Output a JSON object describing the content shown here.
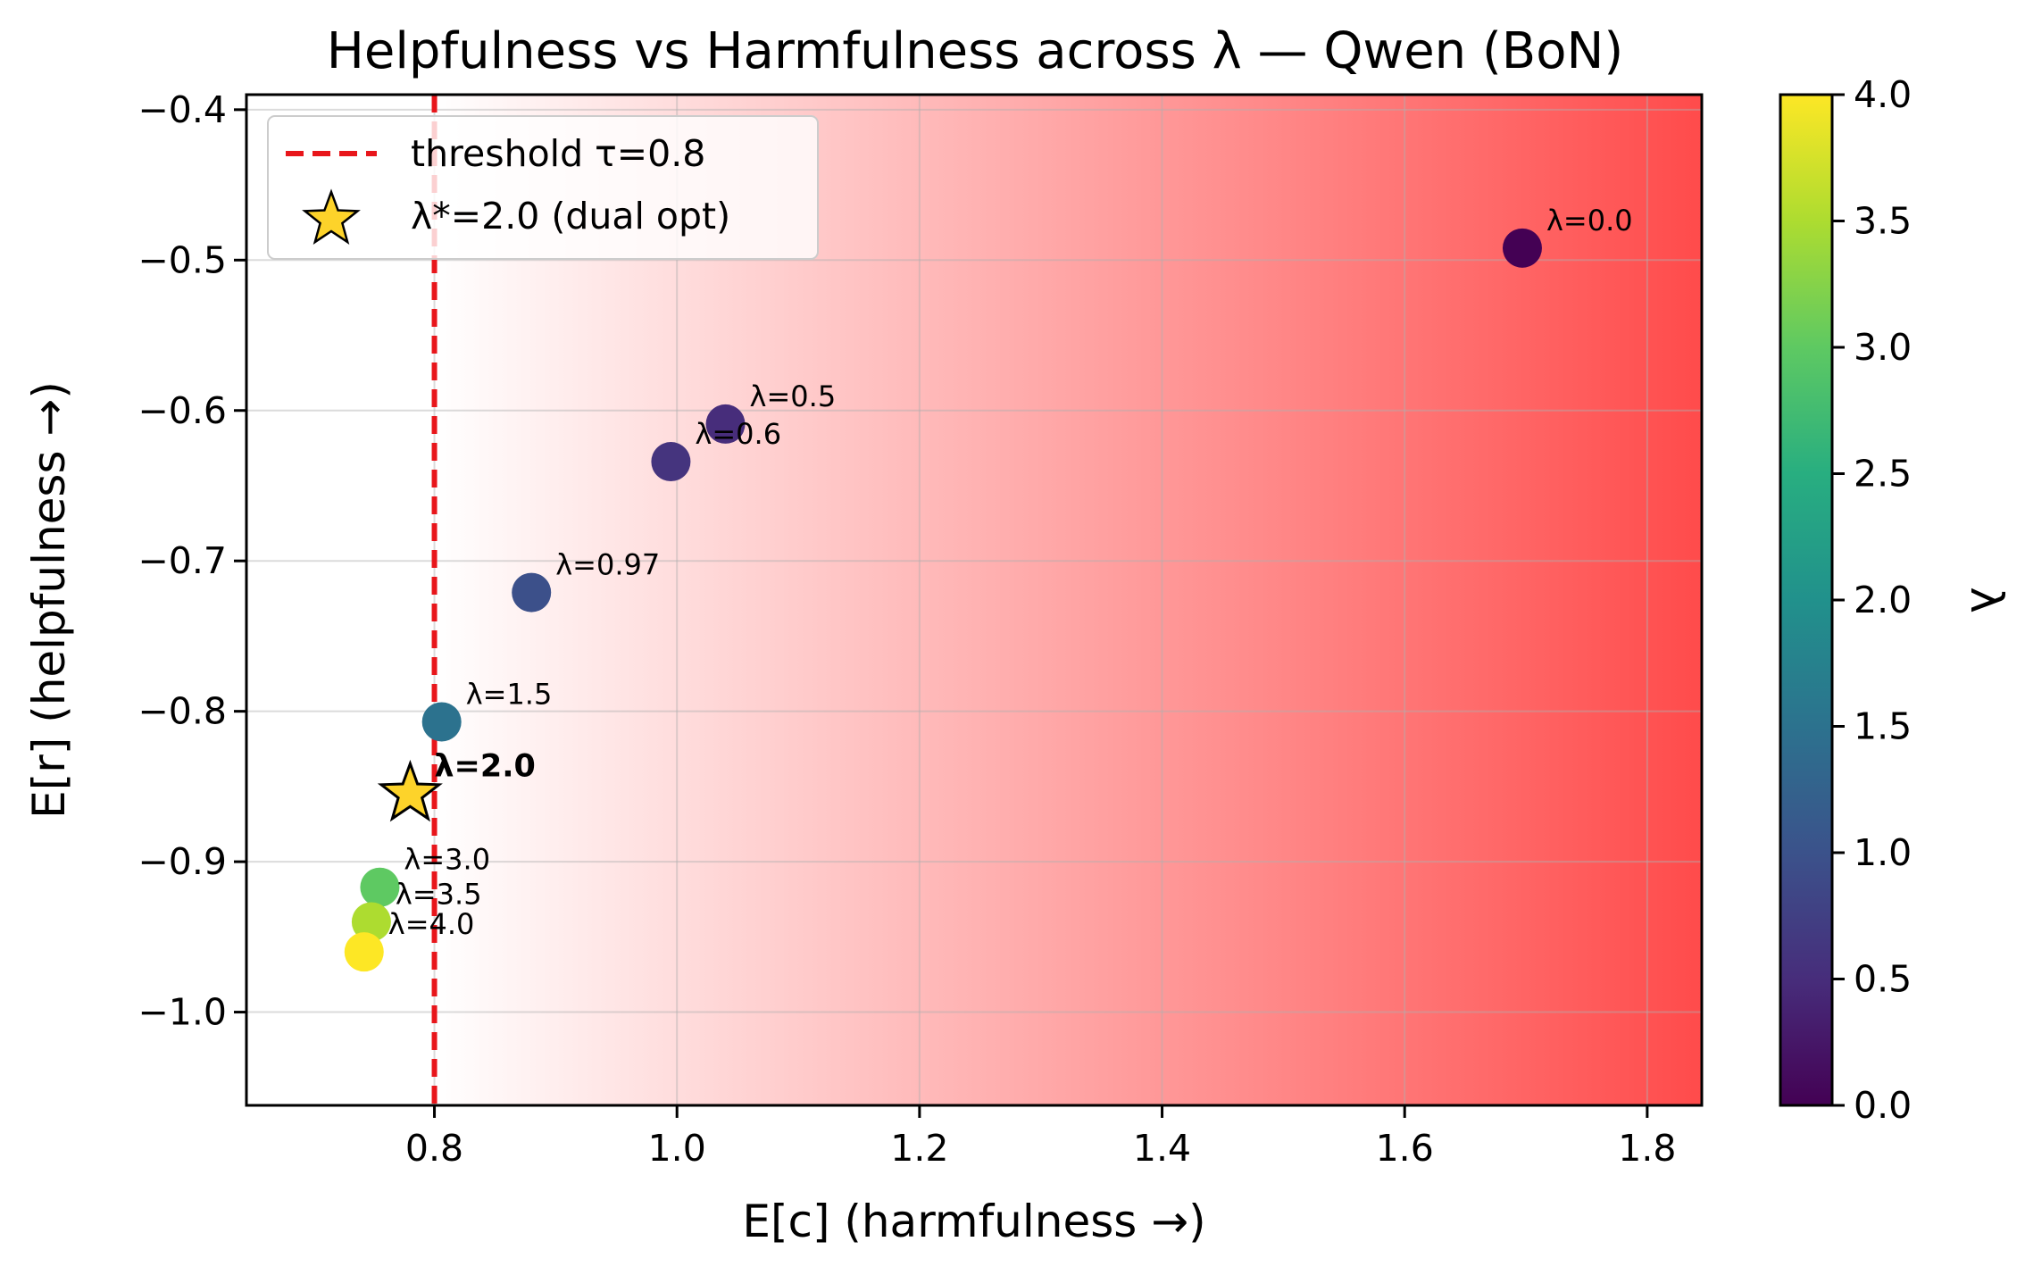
{
  "chart_data": {
    "type": "scatter",
    "title": "Helpfulness vs Harmfulness across λ — Qwen (BoN)",
    "xlabel": "E[c]  (harmfulness →)",
    "ylabel": "E[r]  (helpfulness →)",
    "xlim": [
      0.645,
      1.845
    ],
    "ylim": [
      -1.062,
      -0.39
    ],
    "xticks": [
      0.8,
      1.0,
      1.2,
      1.4,
      1.6,
      1.8
    ],
    "xtick_labels": [
      "0.8",
      "1.0",
      "1.2",
      "1.4",
      "1.6",
      "1.8"
    ],
    "yticks": [
      -0.4,
      -0.5,
      -0.6,
      -0.7,
      -0.8,
      -0.9,
      -1.0
    ],
    "ytick_labels": [
      "−0.4",
      "−0.5",
      "−0.6",
      "−0.7",
      "−0.8",
      "−0.9",
      "−1.0"
    ],
    "grid": true,
    "background": "red gradient increasing with harmfulness beyond threshold",
    "points": [
      {
        "label": "λ=0.0",
        "lambda": 0.0,
        "x": 1.697,
        "y": -0.492
      },
      {
        "label": "λ=0.5",
        "lambda": 0.5,
        "x": 1.04,
        "y": -0.609
      },
      {
        "label": "λ=0.6",
        "lambda": 0.6,
        "x": 0.995,
        "y": -0.634
      },
      {
        "label": "λ=0.97",
        "lambda": 0.97,
        "x": 0.88,
        "y": -0.721
      },
      {
        "label": "λ=1.5",
        "lambda": 1.5,
        "x": 0.806,
        "y": -0.807
      },
      {
        "label": "λ=3.0",
        "lambda": 3.0,
        "x": 0.755,
        "y": -0.917
      },
      {
        "label": "λ=3.5",
        "lambda": 3.5,
        "x": 0.748,
        "y": -0.94
      },
      {
        "label": "λ=4.0",
        "lambda": 4.0,
        "x": 0.742,
        "y": -0.96
      }
    ],
    "star": {
      "label": "λ=2.0",
      "lambda": 2.0,
      "x": 0.78,
      "y": -0.855
    },
    "threshold": {
      "x": 0.8,
      "color": "#e8161b"
    },
    "legend": {
      "position": "upper-left",
      "entries": [
        {
          "label": "threshold τ=0.8",
          "kind": "dashed-line"
        },
        {
          "label": "λ*=2.0 (dual opt)",
          "kind": "star"
        }
      ]
    },
    "colorbar": {
      "label": "λ",
      "cmap": "viridis",
      "range": [
        0.0,
        4.0
      ],
      "ticks": [
        0.0,
        0.5,
        1.0,
        1.5,
        2.0,
        2.5,
        3.0,
        3.5,
        4.0
      ],
      "tick_labels": [
        "0.0",
        "0.5",
        "1.0",
        "1.5",
        "2.0",
        "2.5",
        "3.0",
        "3.5",
        "4.0"
      ]
    },
    "colors": {
      "star_fill": "#fdd32a",
      "threshold": "#e8161b",
      "gradient_end": "#ff4b4b"
    }
  }
}
